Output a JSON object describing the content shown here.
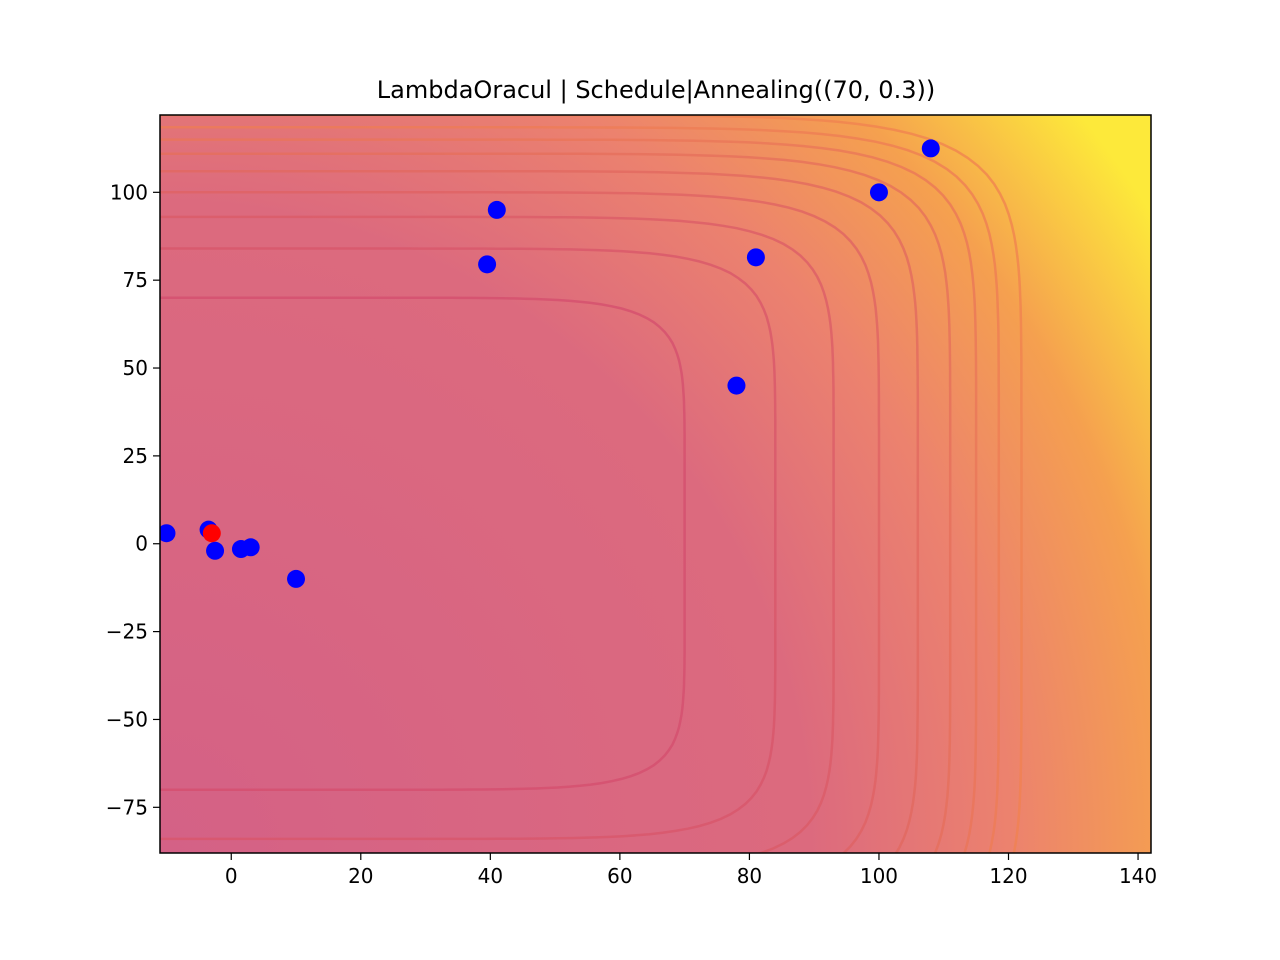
{
  "chart_data": {
    "type": "scatter",
    "title": "LambdaOracul | Schedule|Annealing((70, 0.3))",
    "xlabel": "",
    "ylabel": "",
    "xlim": [
      -11,
      142
    ],
    "ylim": [
      -88,
      122
    ],
    "xticks": [
      0,
      20,
      40,
      60,
      80,
      100,
      120,
      140
    ],
    "yticks": [
      -75,
      -50,
      -25,
      0,
      25,
      50,
      75,
      100
    ],
    "xtick_labels": [
      "0",
      "20",
      "40",
      "60",
      "80",
      "100",
      "120",
      "140"
    ],
    "ytick_labels": [
      "−75",
      "−50",
      "−25",
      "0",
      "25",
      "50",
      "75",
      "100"
    ],
    "grid": false,
    "background": {
      "kind": "filled-contour",
      "colormap": "plasma-light",
      "low_color": "#d46186",
      "high_color": "#fde93a",
      "contour_levels": [
        70,
        84,
        93,
        100,
        106,
        111,
        115,
        118.5,
        122
      ]
    },
    "series": [
      {
        "color": "#0000ff",
        "points": [
          [
            -10,
            3
          ],
          [
            -3.5,
            4
          ],
          [
            -2.5,
            -2
          ],
          [
            1.5,
            -1.5
          ],
          [
            3,
            -1
          ],
          [
            10,
            -10
          ],
          [
            39.5,
            79.5
          ],
          [
            41,
            95
          ],
          [
            78,
            45
          ],
          [
            81,
            81.5
          ],
          [
            100,
            100
          ],
          [
            108,
            112.5
          ]
        ]
      },
      {
        "color": "#ff0000",
        "points": [
          [
            -3,
            3
          ]
        ]
      }
    ]
  }
}
